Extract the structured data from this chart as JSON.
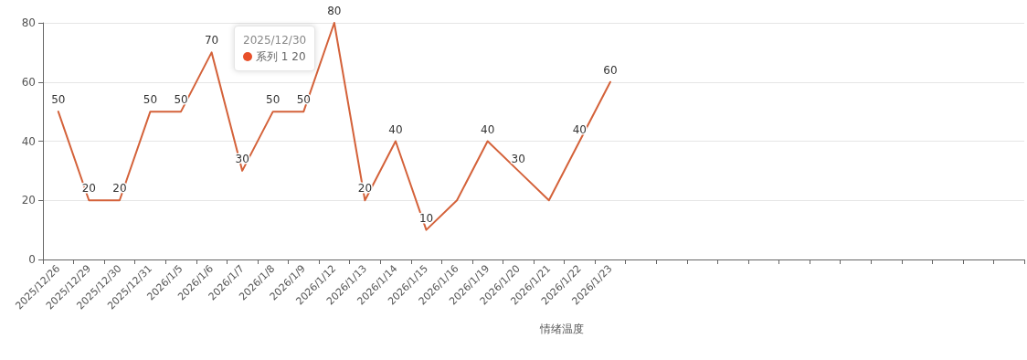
{
  "chart_data": {
    "type": "line",
    "xlabel": "情绪温度",
    "categories": [
      "2025/12/26",
      "2025/12/29",
      "2025/12/30",
      "2025/12/31",
      "2026/1/5",
      "2026/1/6",
      "2026/1/7",
      "2026/1/8",
      "2026/1/9",
      "2026/1/12",
      "2026/1/13",
      "2026/1/14",
      "2026/1/15",
      "2026/1/16",
      "2026/1/19",
      "2026/1/20",
      "2026/1/21",
      "2026/1/22",
      "2026/1/23",
      null,
      null,
      null,
      null,
      null,
      null,
      null,
      null,
      null,
      null,
      null,
      null,
      null
    ],
    "series": [
      {
        "color": "#d4623a",
        "values": [
          50,
          20,
          20,
          50,
          50,
          70,
          30,
          50,
          50,
          80,
          20,
          40,
          10,
          20,
          40,
          30,
          20,
          40,
          60,
          null,
          null,
          null,
          null,
          null,
          null,
          null,
          null,
          null,
          null,
          null,
          null,
          null
        ],
        "value_labels": [
          "50",
          "20",
          "20",
          "50",
          "50",
          "70",
          "30",
          "50",
          "50",
          "80",
          "20",
          "40",
          "10",
          null,
          "40",
          "30",
          null,
          "40",
          "60",
          null,
          null,
          null,
          null,
          null,
          null,
          null,
          null,
          null,
          null,
          null,
          null,
          null
        ]
      }
    ],
    "annotations": [
      "2025/12/30",
      "系列 1 20"
    ],
    "ylim": [
      0,
      80
    ],
    "yticks": [
      0,
      20,
      40,
      60,
      80
    ],
    "grid": "y",
    "marker": "none",
    "line_style": "solid"
  }
}
